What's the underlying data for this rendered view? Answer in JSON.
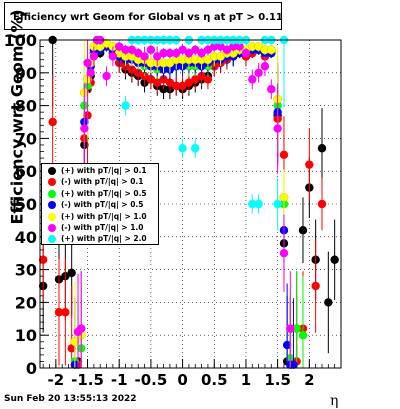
{
  "title": "Efficiency wrt Geom for Global vs   η at pT > 0.11",
  "timestamp": "Sun Feb 20 13:55:13 2022",
  "chart_data": {
    "type": "scatter",
    "title": "Efficiency wrt Geom for Global vs   η at pT > 0.11",
    "xlabel": "η",
    "ylabel": "Efficiency wrt Geom (%)",
    "xlim": [
      -2.25,
      2.5
    ],
    "ylim": [
      0,
      100
    ],
    "x_ticks": [
      "-2",
      "-1.5",
      "-1",
      "-0.5",
      "0",
      "0.5",
      "1",
      "1.5",
      "2"
    ],
    "y_ticks": [
      "0",
      "10",
      "20",
      "30",
      "40",
      "50",
      "60",
      "70",
      "80",
      "90",
      "100"
    ],
    "grid": true,
    "legend_position": "middle-left",
    "series": [
      {
        "name": "(+) with pT/|q| > 0.1",
        "color": "#000000",
        "x": [
          -2.2,
          -2.05,
          -1.95,
          -1.85,
          -1.75,
          -1.65,
          -1.55,
          -1.5,
          -1.45,
          -1.4,
          -1.3,
          -1.2,
          -1.1,
          -1.0,
          -0.9,
          -0.8,
          -0.7,
          -0.6,
          -0.5,
          -0.4,
          -0.3,
          -0.2,
          -0.1,
          0.0,
          0.1,
          0.2,
          0.3,
          0.4,
          0.5,
          0.6,
          0.7,
          0.8,
          0.9,
          1.0,
          1.1,
          1.2,
          1.3,
          1.4,
          1.5,
          1.6,
          1.65,
          1.7,
          1.8,
          1.9,
          2.0,
          2.1,
          2.2,
          2.3,
          2.4
        ],
        "y": [
          25,
          100,
          27,
          28,
          29,
          2,
          68,
          85,
          89,
          96,
          96,
          98,
          96,
          93,
          91,
          90,
          89,
          87,
          88,
          86,
          85,
          85,
          86,
          85,
          86,
          87,
          88,
          89,
          92,
          93,
          94,
          95,
          96,
          95,
          96,
          97,
          95,
          96,
          77,
          38,
          2,
          2,
          12,
          42,
          55,
          33,
          67,
          20,
          33
        ]
      },
      {
        "name": "(-) with pT/|q| > 0.1",
        "color": "#ff0000",
        "x": [
          -2.2,
          -2.05,
          -1.95,
          -1.85,
          -1.75,
          -1.65,
          -1.55,
          -1.5,
          -1.45,
          -1.4,
          -1.3,
          -1.2,
          -1.1,
          -1.0,
          -0.9,
          -0.8,
          -0.7,
          -0.6,
          -0.5,
          -0.4,
          -0.3,
          -0.2,
          -0.1,
          0.0,
          0.1,
          0.2,
          0.3,
          0.4,
          0.5,
          0.6,
          0.7,
          0.8,
          0.9,
          1.0,
          1.1,
          1.2,
          1.3,
          1.4,
          1.5,
          1.6,
          1.7,
          1.8,
          1.9,
          2.0,
          2.1,
          2.2
        ],
        "y": [
          33,
          75,
          17,
          17,
          6,
          1,
          70,
          77,
          87,
          96,
          97,
          98,
          96,
          93,
          92,
          91,
          90,
          89,
          88,
          87,
          88,
          87,
          86,
          86,
          87,
          88,
          89,
          88,
          92,
          93,
          94,
          95,
          96,
          95,
          96,
          97,
          95,
          96,
          76,
          65,
          2,
          2,
          12,
          62,
          25,
          50
        ]
      },
      {
        "name": "(+) with pT/|q| > 0.5",
        "color": "#00ff00",
        "x": [
          -1.7,
          -1.6,
          -1.55,
          -1.5,
          -1.45,
          -1.4,
          -1.3,
          -1.2,
          -1.1,
          -1.0,
          -0.9,
          -0.8,
          -0.7,
          -0.6,
          -0.5,
          -0.4,
          -0.3,
          -0.2,
          -0.1,
          0.0,
          0.1,
          0.2,
          0.3,
          0.4,
          0.5,
          0.6,
          0.7,
          0.8,
          0.9,
          1.0,
          1.1,
          1.2,
          1.3,
          1.4,
          1.5,
          1.6,
          1.7,
          1.8,
          1.9
        ],
        "y": [
          2,
          6,
          80,
          86,
          92,
          97,
          97,
          98,
          97,
          95,
          94,
          94,
          93,
          92,
          92,
          91,
          91,
          92,
          92,
          93,
          92,
          92,
          93,
          92,
          94,
          94,
          95,
          95,
          96,
          96,
          97,
          97,
          96,
          96,
          80,
          50,
          3,
          12,
          10
        ]
      },
      {
        "name": "(-) with pT/|q| > 0.5",
        "color": "#0000ff",
        "x": [
          -1.7,
          -1.6,
          -1.55,
          -1.5,
          -1.45,
          -1.4,
          -1.3,
          -1.2,
          -1.1,
          -1.0,
          -0.9,
          -0.8,
          -0.7,
          -0.6,
          -0.5,
          -0.4,
          -0.3,
          -0.2,
          -0.1,
          0.0,
          0.1,
          0.2,
          0.3,
          0.4,
          0.5,
          0.6,
          0.7,
          0.8,
          0.9,
          1.0,
          1.1,
          1.2,
          1.3,
          1.4,
          1.5,
          1.6,
          1.65,
          1.7,
          1.75
        ],
        "y": [
          1,
          12,
          75,
          88,
          92,
          97,
          97,
          98,
          97,
          95,
          94,
          94,
          93,
          93,
          92,
          92,
          91,
          91,
          92,
          92,
          93,
          93,
          92,
          93,
          94,
          94,
          95,
          95,
          96,
          96,
          97,
          97,
          96,
          96,
          78,
          42,
          7,
          1,
          1
        ]
      },
      {
        "name": "(+) with pT/|q| > 1.0",
        "color": "#ffff00",
        "x": [
          -1.7,
          -1.6,
          -1.55,
          -1.5,
          -1.45,
          -1.4,
          -1.3,
          -1.2,
          -1.1,
          -1.0,
          -0.9,
          -0.8,
          -0.7,
          -0.6,
          -0.5,
          -0.4,
          -0.3,
          -0.2,
          -0.1,
          0.0,
          0.1,
          0.2,
          0.3,
          0.4,
          0.5,
          0.6,
          0.7,
          0.8,
          0.9,
          1.0,
          1.1,
          1.2,
          1.3,
          1.4,
          1.5,
          1.6,
          1.7
        ],
        "y": [
          8,
          10,
          84,
          88,
          93,
          98,
          98,
          99,
          98,
          96,
          95,
          95,
          94,
          94,
          93,
          93,
          93,
          93,
          94,
          94,
          94,
          94,
          94,
          94,
          95,
          95,
          96,
          96,
          97,
          97,
          98,
          98,
          97,
          97,
          82,
          52,
          12
        ]
      },
      {
        "name": "(-) with pT/|q| > 1.0",
        "color": "#ff00ff",
        "x": [
          -1.65,
          -1.6,
          -1.55,
          -1.5,
          -1.45,
          -1.4,
          -1.35,
          -1.3,
          -1.2,
          -1.1,
          -1.0,
          -0.9,
          -0.8,
          -0.7,
          -0.6,
          -0.5,
          -0.4,
          -0.3,
          -0.2,
          -0.1,
          0.0,
          0.1,
          0.2,
          0.3,
          0.4,
          0.5,
          0.6,
          0.7,
          0.8,
          0.9,
          1.0,
          1.1,
          1.2,
          1.3,
          1.4,
          1.5,
          1.6,
          1.7
        ],
        "y": [
          11,
          12,
          73,
          93,
          90,
          95,
          100,
          100,
          89,
          95,
          98,
          97,
          97,
          96,
          95,
          97,
          95,
          96,
          96,
          96,
          97,
          96,
          97,
          96,
          97,
          98,
          98,
          97,
          98,
          98,
          96,
          88,
          90,
          92,
          85,
          73,
          35,
          12
        ]
      },
      {
        "name": "(+) with pT/|q| > 2.0",
        "color": "#00ffff",
        "x": [
          -0.9,
          -0.8,
          -0.7,
          -0.6,
          -0.5,
          -0.4,
          -0.3,
          -0.2,
          -0.1,
          0.0,
          0.1,
          0.2,
          0.3,
          0.4,
          0.5,
          0.6,
          0.7,
          0.8,
          0.9,
          1.0,
          1.1,
          1.2,
          1.3,
          1.4,
          1.5,
          1.6
        ],
        "y": [
          80,
          100,
          100,
          100,
          100,
          100,
          100,
          100,
          100,
          67,
          100,
          67,
          100,
          100,
          100,
          100,
          100,
          100,
          100,
          100,
          50,
          50,
          100,
          100,
          50,
          100
        ]
      }
    ]
  }
}
